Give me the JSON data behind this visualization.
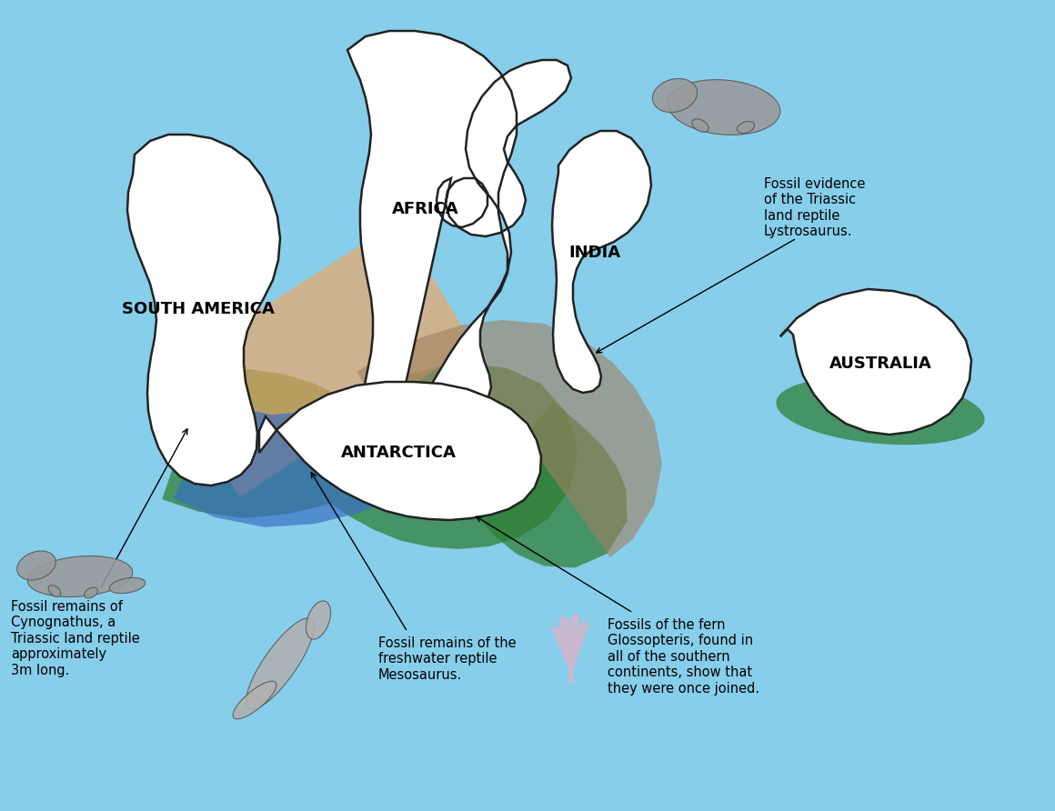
{
  "background_color": "#87CEEB",
  "continent_fill": "#FFFFFF",
  "continent_edge": "#222222",
  "continent_linewidth": 1.8,
  "cynognathus_color": "#F4A460",
  "lystrosaurus_color": "#A08060",
  "glossopteris_color": "#2E7D32",
  "mesosaurus_color": "#3A6EC4",
  "cynognathus_alpha": 0.65,
  "lystrosaurus_alpha": 0.6,
  "glossopteris_alpha": 0.72,
  "mesosaurus_alpha": 0.68,
  "label_africa": "AFRICA",
  "label_south_america": "SOUTH AMERICA",
  "label_india": "INDIA",
  "label_antarctica": "ANTARCTICA",
  "label_australia": "AUSTRALIA",
  "label_fontsize": 13,
  "label_fontweight": "bold",
  "annotation_fontsize": 10.5,
  "cynognathus_text": "Fossil remains of\nCynognathus, a\nTriassic land reptile\napproximately\n3m long.",
  "lystrosaurus_text": "Fossil evidence\nof the Triassic\nland reptile\nLystrosaurus.",
  "mesosaurus_text": "Fossil remains of the\nfreshwater reptile\nMesosaurus.",
  "glossopteris_text": "Fossils of the fern\nGlossopteris, found in\nall of the southern\ncontinents, show that\nthey were once joined."
}
